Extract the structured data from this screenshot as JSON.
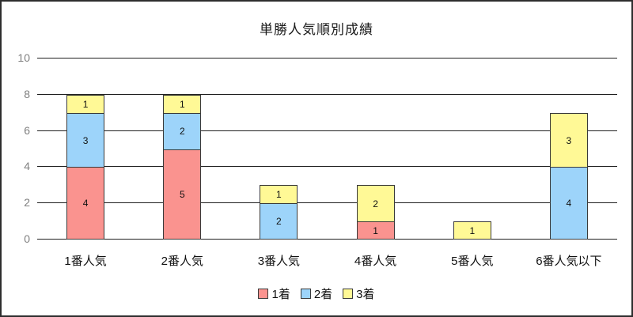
{
  "chart_data": {
    "type": "bar",
    "stacked": true,
    "title": "単勝人気順別成績",
    "categories": [
      "1番人気",
      "2番人気",
      "3番人気",
      "4番人気",
      "5番人気",
      "6番人気以下"
    ],
    "series": [
      {
        "name": "1着",
        "color": "#FA938F",
        "values": [
          4,
          5,
          0,
          1,
          0,
          0
        ]
      },
      {
        "name": "2着",
        "color": "#9DD4FA",
        "values": [
          3,
          2,
          2,
          0,
          0,
          4
        ]
      },
      {
        "name": "3着",
        "color": "#FFF996",
        "values": [
          1,
          1,
          1,
          2,
          1,
          3
        ]
      }
    ],
    "totals": [
      8,
      8,
      3,
      3,
      1,
      7
    ],
    "xlabel": "",
    "ylabel": "",
    "ylim": [
      0,
      10
    ],
    "ytick_step": 2,
    "grid": true,
    "data_labels": true,
    "legend_position": "bottom",
    "colors": {
      "grid_line": "#1f1f1f",
      "segment_border": "#3a3a3a",
      "ytick_text": "#808080",
      "text": "#111111",
      "frame_border": "#2e2e2e",
      "background": "#ffffff"
    }
  }
}
